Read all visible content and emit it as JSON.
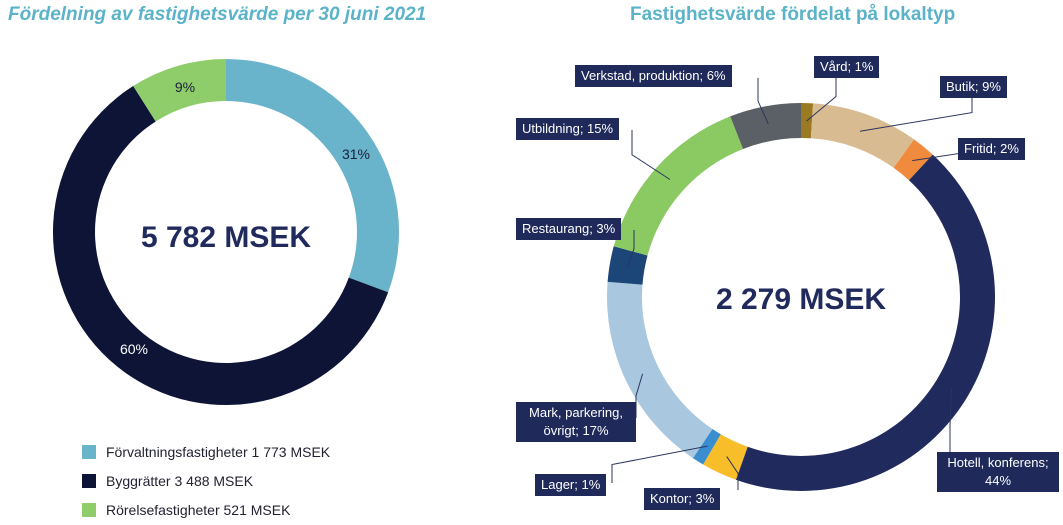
{
  "chart_data": [
    {
      "type": "pie",
      "variant": "donut",
      "title": "Fördelning av fastighetsvärde per 30 juni 2021",
      "center_label": "5 782 MSEK",
      "slices": [
        {
          "label": "Förvaltningsfastigheter 1 773 MSEK",
          "pct_label": "31%",
          "value": 1773,
          "color": "#6ab4cb"
        },
        {
          "label": "Byggrätter 3 488 MSEK",
          "pct_label": "60%",
          "value": 3488,
          "color": "#0d1436"
        },
        {
          "label": "Rörelsefastigheter 521 MSEK",
          "pct_label": "9%",
          "value": 521,
          "color": "#8fcc6a"
        }
      ],
      "legend_position": "bottom-left"
    },
    {
      "type": "pie",
      "variant": "donut",
      "title": "Fastighetsvärde fördelat på lokaltyp",
      "center_label": "2 279 MSEK",
      "slices": [
        {
          "label": "Vård; 1%",
          "value": 1,
          "color": "#9a7a22"
        },
        {
          "label": "Butik; 9%",
          "value": 9,
          "color": "#d9bb92"
        },
        {
          "label": "Fritid; 2%",
          "value": 2,
          "color": "#f08a3c"
        },
        {
          "label": "Hotell, konferens; 44%",
          "value": 44,
          "color": "#212a5c"
        },
        {
          "label": "Kontor; 3%",
          "value": 3,
          "color": "#f7be2a"
        },
        {
          "label": "Lager; 1%",
          "value": 1,
          "color": "#3a8ecf"
        },
        {
          "label": "Mark, parkering, övrigt; 17%",
          "value": 17,
          "color": "#a9c8df"
        },
        {
          "label": "Restaurang; 3%",
          "value": 3,
          "color": "#1c4677"
        },
        {
          "label": "Utbildning; 15%",
          "value": 15,
          "color": "#8bc963"
        },
        {
          "label": "Verkstad, produktion; 6%",
          "value": 6,
          "color": "#5a6066"
        }
      ],
      "legend_position": "callouts"
    }
  ]
}
